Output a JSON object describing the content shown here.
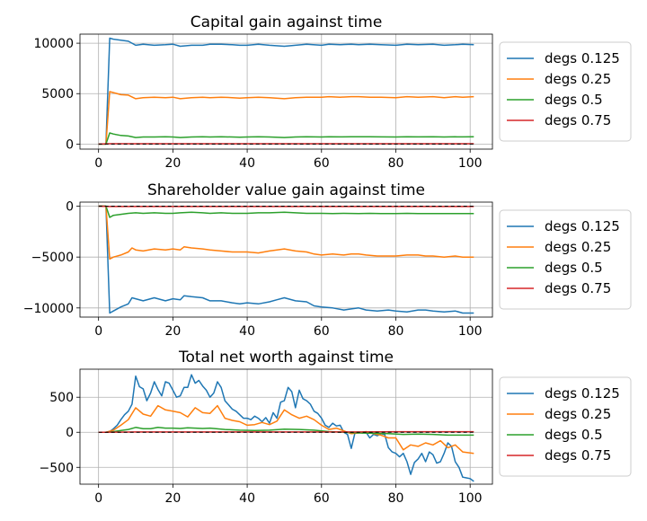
{
  "chart_data": [
    {
      "type": "line",
      "title": "Capital gain against time",
      "xlabel": "",
      "ylabel": "",
      "xlim": [
        -5,
        106
      ],
      "ylim": [
        -500,
        10900
      ],
      "xticks": [
        0,
        20,
        40,
        60,
        80,
        100
      ],
      "yticks": [
        0,
        5000,
        10000
      ],
      "ytick_labels": [
        "0",
        "5000",
        "10000"
      ],
      "grid": true,
      "legend_position": "outside-right",
      "baseline": 0,
      "series": [
        {
          "name": "degs 0.125",
          "color": "#1f77b4",
          "x": [
            0,
            2,
            3,
            4,
            6,
            8,
            10,
            12,
            15,
            18,
            20,
            22,
            25,
            28,
            30,
            33,
            36,
            38,
            40,
            43,
            46,
            50,
            53,
            56,
            60,
            62,
            65,
            68,
            70,
            73,
            76,
            80,
            83,
            86,
            90,
            93,
            96,
            98,
            101
          ],
          "y": [
            0,
            0,
            10500,
            10400,
            10300,
            10200,
            9800,
            9900,
            9800,
            9850,
            9900,
            9700,
            9800,
            9800,
            9900,
            9900,
            9850,
            9800,
            9800,
            9900,
            9800,
            9700,
            9800,
            9900,
            9800,
            9900,
            9850,
            9900,
            9850,
            9900,
            9850,
            9800,
            9900,
            9850,
            9900,
            9800,
            9850,
            9900,
            9850
          ]
        },
        {
          "name": "degs 0.25",
          "color": "#ff7f0e",
          "x": [
            0,
            2,
            3,
            4,
            6,
            8,
            10,
            12,
            15,
            18,
            20,
            22,
            25,
            28,
            30,
            33,
            36,
            38,
            40,
            43,
            46,
            50,
            53,
            56,
            60,
            62,
            65,
            68,
            70,
            73,
            76,
            80,
            83,
            86,
            90,
            93,
            96,
            98,
            101
          ],
          "y": [
            0,
            0,
            5200,
            5100,
            4900,
            4850,
            4500,
            4600,
            4650,
            4600,
            4650,
            4500,
            4600,
            4650,
            4600,
            4650,
            4600,
            4550,
            4600,
            4650,
            4600,
            4500,
            4600,
            4650,
            4650,
            4700,
            4650,
            4700,
            4700,
            4650,
            4650,
            4600,
            4700,
            4650,
            4700,
            4600,
            4700,
            4650,
            4700
          ]
        },
        {
          "name": "degs 0.5",
          "color": "#2ca02c",
          "x": [
            0,
            2,
            3,
            4,
            6,
            8,
            10,
            12,
            15,
            18,
            20,
            22,
            25,
            28,
            30,
            33,
            36,
            38,
            40,
            43,
            46,
            50,
            53,
            56,
            60,
            62,
            65,
            68,
            70,
            73,
            76,
            80,
            83,
            86,
            90,
            93,
            96,
            98,
            101
          ],
          "y": [
            0,
            0,
            1100,
            1000,
            850,
            800,
            650,
            700,
            700,
            720,
            700,
            650,
            700,
            720,
            700,
            720,
            700,
            680,
            700,
            720,
            700,
            650,
            700,
            720,
            700,
            730,
            710,
            730,
            720,
            720,
            710,
            700,
            720,
            710,
            720,
            700,
            720,
            710,
            720
          ]
        },
        {
          "name": "degs 0.75",
          "color": "#d62728",
          "x": [
            0,
            3,
            20,
            40,
            60,
            80,
            101
          ],
          "y": [
            0,
            30,
            30,
            30,
            30,
            30,
            30
          ]
        }
      ]
    },
    {
      "type": "line",
      "title": "Shareholder value gain against time",
      "xlabel": "",
      "ylabel": "",
      "xlim": [
        -5,
        106
      ],
      "ylim": [
        -10900,
        400
      ],
      "xticks": [
        0,
        20,
        40,
        60,
        80,
        100
      ],
      "yticks": [
        0,
        -5000,
        -10000
      ],
      "ytick_labels": [
        "0",
        "−5000",
        "−10000"
      ],
      "grid": true,
      "legend_position": "outside-right",
      "baseline": 0,
      "series": [
        {
          "name": "degs 0.125",
          "color": "#1f77b4",
          "x": [
            0,
            2,
            3,
            4,
            6,
            8,
            9,
            10,
            12,
            15,
            18,
            20,
            22,
            23,
            25,
            28,
            30,
            33,
            36,
            38,
            40,
            43,
            46,
            48,
            50,
            53,
            56,
            58,
            60,
            63,
            66,
            68,
            70,
            72,
            75,
            78,
            80,
            83,
            86,
            88,
            90,
            93,
            96,
            98,
            101
          ],
          "y": [
            0,
            0,
            -10500,
            -10300,
            -9900,
            -9600,
            -9000,
            -9100,
            -9300,
            -9000,
            -9300,
            -9100,
            -9200,
            -8800,
            -8900,
            -9000,
            -9300,
            -9300,
            -9500,
            -9600,
            -9500,
            -9600,
            -9400,
            -9200,
            -9000,
            -9300,
            -9400,
            -9800,
            -9900,
            -10000,
            -10200,
            -10100,
            -10000,
            -10200,
            -10300,
            -10200,
            -10300,
            -10400,
            -10200,
            -10200,
            -10300,
            -10400,
            -10300,
            -10500,
            -10500
          ]
        },
        {
          "name": "degs 0.25",
          "color": "#ff7f0e",
          "x": [
            0,
            2,
            3,
            4,
            6,
            8,
            9,
            10,
            12,
            15,
            18,
            20,
            22,
            23,
            25,
            28,
            30,
            33,
            36,
            38,
            40,
            43,
            46,
            48,
            50,
            53,
            56,
            58,
            60,
            63,
            66,
            68,
            70,
            72,
            75,
            78,
            80,
            83,
            86,
            88,
            90,
            93,
            96,
            98,
            101
          ],
          "y": [
            0,
            0,
            -5200,
            -5000,
            -4800,
            -4500,
            -4100,
            -4300,
            -4400,
            -4200,
            -4300,
            -4200,
            -4300,
            -4000,
            -4100,
            -4200,
            -4300,
            -4400,
            -4500,
            -4500,
            -4500,
            -4600,
            -4400,
            -4300,
            -4200,
            -4400,
            -4500,
            -4700,
            -4800,
            -4700,
            -4800,
            -4700,
            -4700,
            -4800,
            -4900,
            -4900,
            -4900,
            -4800,
            -4800,
            -4900,
            -4900,
            -5000,
            -4900,
            -5000,
            -5000
          ]
        },
        {
          "name": "degs 0.5",
          "color": "#2ca02c",
          "x": [
            0,
            2,
            3,
            4,
            6,
            8,
            10,
            12,
            15,
            18,
            20,
            22,
            25,
            28,
            30,
            33,
            36,
            38,
            40,
            43,
            46,
            50,
            53,
            56,
            60,
            63,
            66,
            70,
            73,
            76,
            80,
            83,
            86,
            90,
            93,
            96,
            98,
            101
          ],
          "y": [
            0,
            0,
            -1100,
            -900,
            -800,
            -700,
            -650,
            -700,
            -650,
            -700,
            -700,
            -650,
            -600,
            -650,
            -700,
            -650,
            -700,
            -700,
            -700,
            -650,
            -650,
            -600,
            -650,
            -700,
            -700,
            -720,
            -700,
            -720,
            -700,
            -720,
            -730,
            -700,
            -720,
            -730,
            -720,
            -730,
            -720,
            -730
          ]
        },
        {
          "name": "degs 0.75",
          "color": "#d62728",
          "x": [
            0,
            3,
            20,
            40,
            60,
            80,
            101
          ],
          "y": [
            0,
            -30,
            -30,
            -30,
            -30,
            -30,
            -30
          ]
        }
      ]
    },
    {
      "type": "line",
      "title": "Total net worth against time",
      "xlabel": "",
      "ylabel": "",
      "xlim": [
        -5,
        106
      ],
      "ylim": [
        -740,
        900
      ],
      "xticks": [
        0,
        20,
        40,
        60,
        80,
        100
      ],
      "yticks": [
        500,
        0,
        -500
      ],
      "ytick_labels": [
        "500",
        "0",
        "−500"
      ],
      "grid": true,
      "legend_position": "outside-right",
      "baseline": 0,
      "series": [
        {
          "name": "degs 0.125",
          "color": "#1f77b4",
          "x": [
            0,
            2,
            3,
            4,
            5,
            6,
            7,
            8,
            9,
            10,
            11,
            12,
            13,
            14,
            15,
            16,
            17,
            18,
            19,
            20,
            21,
            22,
            23,
            24,
            25,
            26,
            27,
            28,
            29,
            30,
            31,
            32,
            33,
            34,
            35,
            36,
            37,
            38,
            39,
            40,
            41,
            42,
            43,
            44,
            45,
            46,
            47,
            48,
            49,
            50,
            51,
            52,
            53,
            54,
            55,
            56,
            57,
            58,
            59,
            60,
            61,
            62,
            63,
            64,
            65,
            66,
            67,
            68,
            69,
            70,
            71,
            72,
            73,
            74,
            75,
            76,
            77,
            78,
            79,
            80,
            81,
            82,
            83,
            84,
            85,
            86,
            87,
            88,
            89,
            90,
            91,
            92,
            93,
            94,
            95,
            96,
            97,
            98,
            99,
            100,
            101
          ],
          "y": [
            0,
            0,
            10,
            50,
            100,
            180,
            250,
            300,
            400,
            800,
            650,
            620,
            450,
            560,
            720,
            610,
            520,
            720,
            700,
            600,
            500,
            520,
            640,
            640,
            820,
            700,
            740,
            660,
            600,
            500,
            560,
            720,
            640,
            450,
            390,
            330,
            300,
            250,
            200,
            200,
            180,
            230,
            200,
            150,
            210,
            130,
            280,
            200,
            430,
            450,
            640,
            580,
            350,
            600,
            480,
            450,
            400,
            300,
            270,
            200,
            100,
            70,
            130,
            90,
            100,
            0,
            -30,
            -230,
            -10,
            0,
            -10,
            0,
            -80,
            -30,
            -50,
            -20,
            -30,
            -220,
            -280,
            -300,
            -350,
            -300,
            -420,
            -600,
            -430,
            -380,
            -300,
            -420,
            -280,
            -320,
            -440,
            -420,
            -300,
            -150,
            -200,
            -420,
            -500,
            -640,
            -650,
            -660,
            -700
          ]
        },
        {
          "name": "degs 0.25",
          "color": "#ff7f0e",
          "x": [
            0,
            2,
            4,
            6,
            8,
            10,
            12,
            14,
            16,
            18,
            20,
            22,
            24,
            26,
            28,
            30,
            32,
            34,
            36,
            38,
            40,
            42,
            44,
            46,
            48,
            50,
            52,
            54,
            56,
            58,
            60,
            62,
            64,
            66,
            68,
            70,
            72,
            74,
            76,
            78,
            80,
            82,
            84,
            86,
            88,
            90,
            92,
            94,
            96,
            98,
            101
          ],
          "y": [
            0,
            0,
            30,
            100,
            180,
            350,
            260,
            230,
            380,
            320,
            300,
            280,
            220,
            350,
            280,
            270,
            380,
            200,
            170,
            150,
            100,
            110,
            140,
            110,
            160,
            320,
            250,
            200,
            230,
            180,
            100,
            40,
            60,
            20,
            -20,
            -10,
            10,
            -20,
            -40,
            -80,
            -80,
            -250,
            -180,
            -200,
            -150,
            -180,
            -120,
            -220,
            -180,
            -280,
            -300
          ]
        },
        {
          "name": "degs 0.5",
          "color": "#2ca02c",
          "x": [
            0,
            2,
            4,
            6,
            8,
            10,
            12,
            14,
            16,
            18,
            20,
            22,
            24,
            26,
            28,
            30,
            34,
            38,
            42,
            46,
            50,
            54,
            58,
            62,
            66,
            70,
            74,
            78,
            82,
            86,
            90,
            94,
            98,
            101
          ],
          "y": [
            0,
            0,
            10,
            25,
            40,
            70,
            50,
            50,
            70,
            60,
            60,
            55,
            65,
            60,
            55,
            60,
            40,
            30,
            25,
            30,
            45,
            40,
            30,
            10,
            0,
            -10,
            -15,
            -20,
            -30,
            -25,
            -30,
            -40,
            -40,
            -40
          ]
        },
        {
          "name": "degs 0.75",
          "color": "#d62728",
          "x": [
            0,
            10,
            20,
            30,
            40,
            50,
            60,
            70,
            80,
            90,
            101
          ],
          "y": [
            0,
            5,
            5,
            5,
            5,
            5,
            5,
            5,
            8,
            8,
            8
          ]
        }
      ]
    }
  ]
}
